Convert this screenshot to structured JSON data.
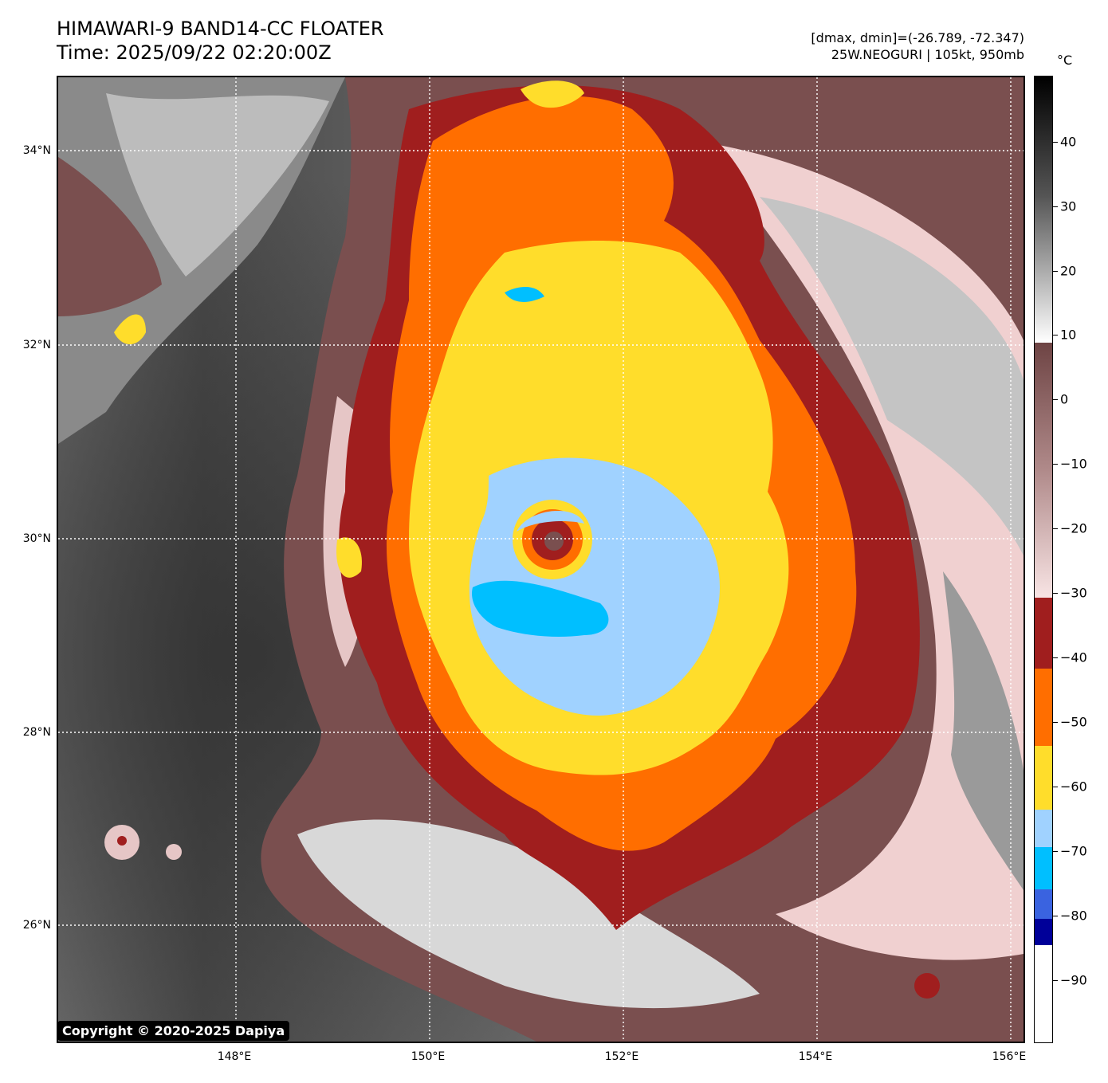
{
  "header": {
    "title_line1": "HIMAWARI-9 BAND14-CC FLOATER",
    "title_line2": "Time: 2025/09/22 02:20:00Z",
    "meta_line1": "[dmax, dmin]=(-26.789, -72.347)",
    "meta_line2": "25W.NEOGURI | 105kt, 950mb"
  },
  "axes": {
    "lat_labels": [
      "34°N",
      "32°N",
      "30°N",
      "28°N",
      "26°N"
    ],
    "lon_labels": [
      "148°E",
      "150°E",
      "152°E",
      "154°E",
      "156°E"
    ]
  },
  "colorbar": {
    "unit": "°C",
    "tick_labels": [
      "40",
      "30",
      "20",
      "10",
      "0",
      "−10",
      "−20",
      "−30",
      "−40",
      "−50",
      "−60",
      "−70",
      "−80",
      "−90"
    ],
    "colors": {
      "white": "#ffffff",
      "navy": "#000099",
      "royal_blue": "#3a63e0",
      "cyan": "#00bfff",
      "light_blue": "#a0d2ff",
      "yellow": "#ffdd2b",
      "orange": "#ff6e00",
      "dark_red": "#a01e1e",
      "pink_light": "#f5dcdc",
      "mauve": "#7a4f4f",
      "gray": "#808080",
      "black": "#000000"
    }
  },
  "copyright": "Copyright © 2020-2025 Dapiya"
}
